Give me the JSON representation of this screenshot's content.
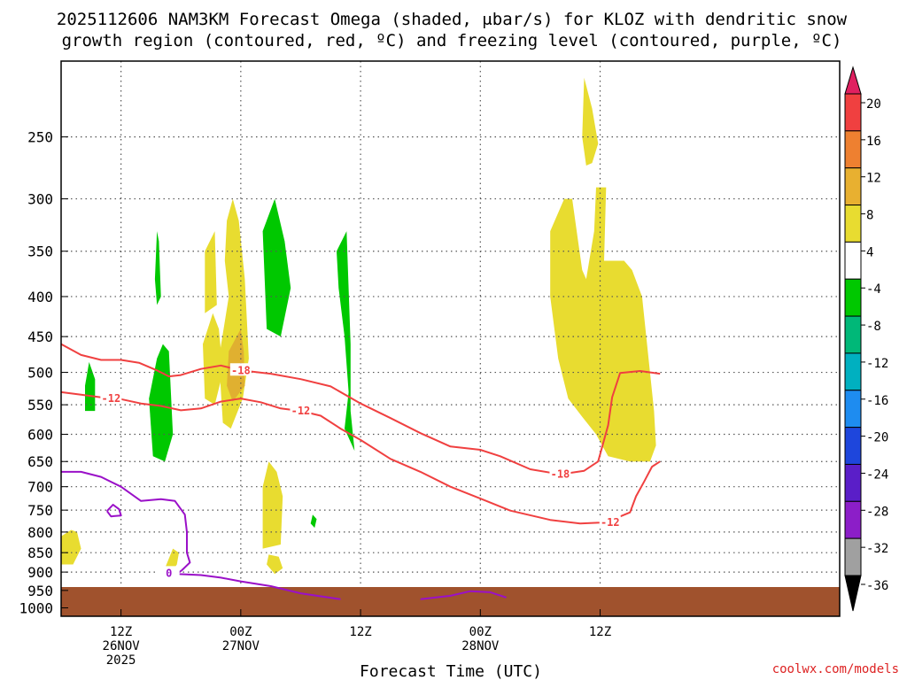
{
  "chart_data": {
    "type": "time-height cross section",
    "title_line1": "2025112606 NAM3KM Forecast Omega (shaded, μbar/s) for KLOZ with dendritic snow",
    "title_line2": "growth region (contoured, red, ºC) and freezing level (contoured, purple, ºC)",
    "xlabel": "Forecast Time (UTC)",
    "credit": "coolwx.com/models",
    "pressure_levels": [
      250,
      300,
      350,
      400,
      450,
      500,
      550,
      600,
      650,
      700,
      750,
      800,
      850,
      900,
      950,
      1000
    ],
    "y_range_hpa": [
      200,
      1025
    ],
    "x_range_hours": [
      6,
      84
    ],
    "time_ticks": [
      {
        "hour": 12,
        "line1": "12Z",
        "line2": "26NOV",
        "line3": "2025"
      },
      {
        "hour": 24,
        "line1": "00Z",
        "line2": "27NOV",
        "line3": ""
      },
      {
        "hour": 36,
        "line1": "12Z",
        "line2": "",
        "line3": ""
      },
      {
        "hour": 48,
        "line1": "00Z",
        "line2": "28NOV",
        "line3": ""
      },
      {
        "hour": 60,
        "line1": "12Z",
        "line2": "",
        "line3": ""
      }
    ],
    "colorbar": {
      "labels": [
        "20",
        "16",
        "12",
        "8",
        "4",
        "-4",
        "-8",
        "-12",
        "-16",
        "-20",
        "-24",
        "-28",
        "-32",
        "-36"
      ],
      "colors": [
        "#e02060",
        "#f04040",
        "#ee8030",
        "#e8b030",
        "#e8dc30",
        "#ffffff",
        "#00c800",
        "#00b878",
        "#00b0c0",
        "#1e8cf0",
        "#1e46dc",
        "#5a1ec8",
        "#8c1ec8",
        "#a0a0a0",
        "#000000"
      ]
    },
    "omega_regions": [
      {
        "color": "#e8dc30",
        "pts": [
          [
            22.8,
            400
          ],
          [
            21.8,
            480
          ],
          [
            22.2,
            580
          ],
          [
            23,
            590
          ],
          [
            24.2,
            540
          ],
          [
            24.8,
            480
          ],
          [
            24.4,
            380
          ],
          [
            23.8,
            320
          ],
          [
            23.2,
            300
          ],
          [
            22.6,
            320
          ],
          [
            22.4,
            360
          ]
        ]
      },
      {
        "color": "#e8dc30",
        "pts": [
          [
            21.2,
            420
          ],
          [
            20.2,
            460
          ],
          [
            20.4,
            540
          ],
          [
            21.4,
            550
          ],
          [
            22.2,
            500
          ],
          [
            21.8,
            440
          ]
        ]
      },
      {
        "color": "#e8dc30",
        "pts": [
          [
            21.4,
            330
          ],
          [
            20.4,
            350
          ],
          [
            20.4,
            420
          ],
          [
            21.6,
            410
          ]
        ]
      },
      {
        "color": "#e0b030",
        "pts": [
          [
            24,
            440
          ],
          [
            22.8,
            470
          ],
          [
            22.6,
            520
          ],
          [
            23.2,
            545
          ],
          [
            24.4,
            520
          ],
          [
            24.3,
            470
          ]
        ]
      },
      {
        "color": "#00c800",
        "pts": [
          [
            27.4,
            300
          ],
          [
            26.2,
            330
          ],
          [
            26.6,
            440
          ],
          [
            28,
            450
          ],
          [
            29,
            390
          ],
          [
            28.4,
            340
          ]
        ]
      },
      {
        "color": "#00c800",
        "pts": [
          [
            34.6,
            330
          ],
          [
            33.6,
            350
          ],
          [
            33.8,
            390
          ],
          [
            34.4,
            450
          ],
          [
            34.8,
            530
          ],
          [
            34.4,
            590
          ],
          [
            35.4,
            630
          ],
          [
            35,
            560
          ],
          [
            35,
            460
          ]
        ]
      },
      {
        "color": "#00c800",
        "pts": [
          [
            15.6,
            330
          ],
          [
            15.4,
            380
          ],
          [
            15.6,
            410
          ],
          [
            16,
            400
          ],
          [
            15.8,
            340
          ]
        ]
      },
      {
        "color": "#00c800",
        "pts": [
          [
            15.6,
            480
          ],
          [
            14.8,
            540
          ],
          [
            15.2,
            640
          ],
          [
            16.4,
            650
          ],
          [
            17.2,
            600
          ],
          [
            16.8,
            470
          ],
          [
            16.2,
            460
          ]
        ]
      },
      {
        "color": "#00c800",
        "pts": [
          [
            8.8,
            485
          ],
          [
            8.4,
            520
          ],
          [
            8.4,
            560
          ],
          [
            9.4,
            560
          ],
          [
            9.4,
            510
          ]
        ]
      },
      {
        "color": "#00c800",
        "pts": [
          [
            31.2,
            760
          ],
          [
            31.0,
            780
          ],
          [
            31.4,
            790
          ],
          [
            31.6,
            770
          ]
        ]
      },
      {
        "color": "#e8dc30",
        "pts": [
          [
            26.8,
            650
          ],
          [
            26.2,
            700
          ],
          [
            26.2,
            840
          ],
          [
            28,
            830
          ],
          [
            28.2,
            720
          ],
          [
            27.6,
            670
          ]
        ]
      },
      {
        "color": "#e8dc30",
        "pts": [
          [
            26.8,
            855
          ],
          [
            26.6,
            880
          ],
          [
            27.4,
            905
          ],
          [
            28.2,
            890
          ],
          [
            27.8,
            860
          ]
        ]
      },
      {
        "color": "#e8dc30",
        "pts": [
          [
            16.4,
            890
          ],
          [
            16,
            905
          ],
          [
            16.8,
            910
          ],
          [
            17.6,
            880
          ],
          [
            17.8,
            850
          ],
          [
            17.2,
            840
          ]
        ]
      },
      {
        "color": "#e8dc30",
        "pts": [
          [
            6,
            810
          ],
          [
            6,
            880
          ],
          [
            7.2,
            880
          ],
          [
            8,
            840
          ],
          [
            7.6,
            800
          ],
          [
            7,
            795
          ]
        ]
      },
      {
        "color": "#e8dc30",
        "pts": [
          [
            58.4,
            210
          ],
          [
            58.2,
            250
          ],
          [
            58.6,
            272
          ],
          [
            59.2,
            270
          ],
          [
            59.8,
            255
          ],
          [
            59.2,
            230
          ]
        ]
      },
      {
        "color": "#e8dc30",
        "pts": [
          [
            56.4,
            300
          ],
          [
            55,
            330
          ],
          [
            55,
            400
          ],
          [
            55.8,
            480
          ],
          [
            56.8,
            540
          ],
          [
            58.2,
            570
          ],
          [
            59.6,
            600
          ],
          [
            60.8,
            640
          ],
          [
            63,
            650
          ],
          [
            65,
            650
          ],
          [
            65.6,
            620
          ],
          [
            65.4,
            560
          ],
          [
            64.2,
            400
          ],
          [
            63.2,
            370
          ],
          [
            62.4,
            360
          ],
          [
            60.4,
            360
          ],
          [
            60.6,
            290
          ],
          [
            59.6,
            290
          ],
          [
            59.4,
            330
          ],
          [
            58.6,
            380
          ],
          [
            58.2,
            370
          ],
          [
            57.8,
            340
          ],
          [
            57.2,
            300
          ]
        ]
      }
    ],
    "red_contours": [
      {
        "label": "-18",
        "label_at": [
          24,
          497
        ],
        "pts": [
          [
            6,
            460
          ],
          [
            8,
            475
          ],
          [
            10,
            482
          ],
          [
            12,
            482
          ],
          [
            13.8,
            486
          ],
          [
            15.6,
            497
          ],
          [
            16.8,
            506
          ],
          [
            18,
            504
          ],
          [
            20,
            495
          ],
          [
            22,
            490
          ],
          [
            24,
            497
          ],
          [
            27,
            502
          ],
          [
            30,
            510
          ],
          [
            33,
            521
          ],
          [
            36,
            548
          ],
          [
            39,
            572
          ],
          [
            42,
            598
          ],
          [
            45,
            622
          ],
          [
            48,
            628
          ],
          [
            50,
            640
          ],
          [
            53,
            665
          ],
          [
            56,
            675
          ],
          [
            58.4,
            668
          ],
          [
            59.8,
            650
          ],
          [
            60.8,
            584
          ],
          [
            61.2,
            538
          ],
          [
            62,
            501
          ],
          [
            64,
            498
          ],
          [
            66,
            502
          ]
        ]
      },
      {
        "label": "-12",
        "label_at": [
          11,
          540
        ],
        "pts": [
          [
            6,
            530
          ],
          [
            8,
            534
          ],
          [
            10,
            538
          ],
          [
            12,
            541
          ],
          [
            14,
            548
          ],
          [
            16,
            552
          ],
          [
            18,
            559
          ],
          [
            20,
            556
          ],
          [
            22,
            545
          ],
          [
            24,
            540
          ],
          [
            26,
            546
          ],
          [
            28,
            556
          ],
          [
            30,
            560
          ],
          [
            32,
            568
          ],
          [
            34,
            590
          ],
          [
            36,
            610
          ],
          [
            39,
            645
          ],
          [
            42,
            670
          ],
          [
            45,
            700
          ],
          [
            48,
            725
          ],
          [
            51,
            751
          ],
          [
            55,
            772
          ],
          [
            58,
            780
          ],
          [
            60,
            778
          ],
          [
            61.6,
            768
          ],
          [
            63,
            755
          ],
          [
            63.6,
            720
          ],
          [
            64.4,
            690
          ],
          [
            65.2,
            660
          ],
          [
            66,
            650
          ]
        ]
      }
    ],
    "purple_contours": [
      {
        "label": "0",
        "label_at": [
          16.8,
          903
        ],
        "pts": [
          [
            6,
            670
          ],
          [
            8,
            670
          ],
          [
            10,
            680
          ],
          [
            12,
            700
          ],
          [
            14,
            730
          ],
          [
            16,
            726
          ],
          [
            17.4,
            730
          ],
          [
            18.4,
            760
          ],
          [
            18.6,
            800
          ],
          [
            18.6,
            850
          ],
          [
            18.9,
            875
          ],
          [
            18.1,
            895
          ],
          [
            17.6,
            905
          ],
          [
            20,
            908
          ],
          [
            22,
            915
          ],
          [
            24,
            925
          ],
          [
            27,
            938
          ],
          [
            30,
            958
          ],
          [
            34,
            975
          ]
        ]
      },
      {
        "label": "",
        "label_at": null,
        "pts": [
          [
            10.6,
            752
          ],
          [
            11.2,
            738
          ],
          [
            11.8,
            748
          ],
          [
            12,
            762
          ],
          [
            11,
            764
          ],
          [
            10.6,
            752
          ]
        ]
      },
      {
        "label": "",
        "label_at": null,
        "pts": [
          [
            42,
            975
          ],
          [
            45,
            965
          ],
          [
            47,
            952
          ],
          [
            49,
            955
          ],
          [
            50.6,
            970
          ]
        ]
      }
    ]
  }
}
